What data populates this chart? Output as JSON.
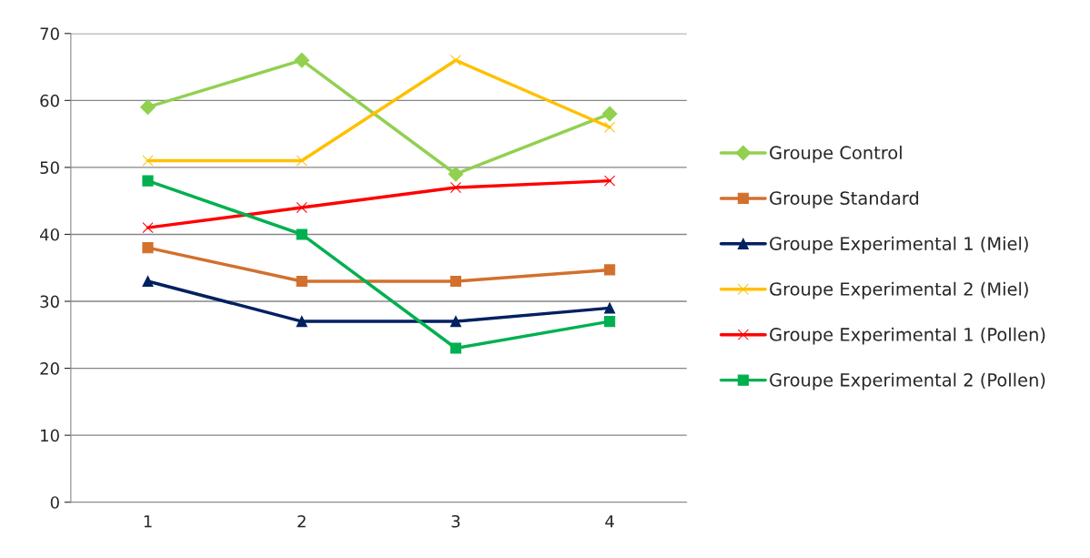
{
  "chart_data": {
    "type": "line",
    "categories": [
      "1",
      "2",
      "3",
      "4"
    ],
    "series": [
      {
        "name": "Groupe Control",
        "color": "#92d050",
        "marker": "diamond",
        "values": [
          59,
          66,
          49,
          58
        ]
      },
      {
        "name": "Groupe Standard",
        "color": "#d2702e",
        "marker": "square",
        "values": [
          38,
          33,
          33,
          34.7
        ]
      },
      {
        "name": "Groupe Experimental 1 (Miel)",
        "color": "#002060",
        "marker": "triangle",
        "values": [
          33,
          27,
          27,
          29
        ]
      },
      {
        "name": "Groupe Experimental 2 (Miel)",
        "color": "#ffc000",
        "marker": "cross",
        "values": [
          51,
          51,
          66,
          56
        ]
      },
      {
        "name": "Groupe Experimental 1 (Pollen)",
        "color": "#ff0000",
        "marker": "cross",
        "values": [
          41,
          44,
          47,
          48
        ]
      },
      {
        "name": "Groupe Experimental 2 (Pollen)",
        "color": "#00b050",
        "marker": "square",
        "values": [
          48,
          40,
          23,
          27
        ]
      }
    ],
    "ylim": [
      0,
      70
    ],
    "yticks": [
      0,
      10,
      20,
      30,
      40,
      50,
      60,
      70
    ],
    "grid": "y",
    "legend": "right"
  }
}
